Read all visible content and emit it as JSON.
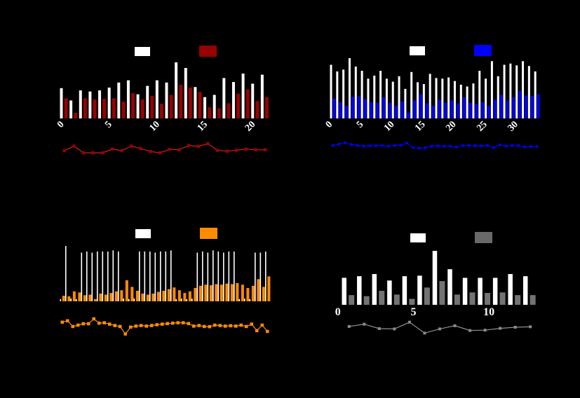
{
  "figure": {
    "background": "#000000",
    "grid_layout": "2x2",
    "titles_visible": false,
    "axis_labels_visible": false
  },
  "chart_data": [
    {
      "panel": "top-left",
      "type": "bar",
      "subtype": "grouped-bars-with-line-subplot",
      "n_groups": 22,
      "x_tick_labels": [
        "0",
        "5",
        "10",
        "15",
        "20"
      ],
      "x_tick_indices": [
        0,
        5,
        10,
        15,
        20
      ],
      "x_ticks_rotated": true,
      "ylim": [
        0,
        100
      ],
      "grid": false,
      "legend": {
        "position": "top-center",
        "labels_visible": false,
        "swatch_colors": [
          "#FFFFFF",
          "#990000"
        ]
      },
      "series": [
        {
          "name": "white-bars",
          "color": "#FFFFFF",
          "values": [
            54,
            32,
            50,
            48,
            50,
            55,
            64,
            68,
            43,
            58,
            68,
            64,
            100,
            90,
            56,
            38,
            42,
            72,
            65,
            80,
            62,
            78
          ]
        },
        {
          "name": "dark-red-bars",
          "color": "#990000",
          "values": [
            36,
            10,
            36,
            34,
            35,
            36,
            30,
            45,
            34,
            40,
            26,
            42,
            60,
            55,
            47,
            20,
            18,
            27,
            44,
            52,
            31,
            38
          ]
        }
      ],
      "line_series": {
        "name": "dark-red-line",
        "color": "#CC2222",
        "marker_color": "#990000",
        "marker": "square",
        "values": [
          25,
          52,
          12,
          12,
          12,
          34,
          25,
          52,
          37,
          20,
          12,
          33,
          30,
          56,
          50,
          67,
          27,
          22,
          27,
          34,
          30,
          30
        ]
      }
    },
    {
      "panel": "top-right",
      "type": "bar",
      "subtype": "grouped-bars-with-line-subplot",
      "n_groups": 34,
      "x_tick_labels": [
        "0",
        "5",
        "10",
        "15",
        "20",
        "25",
        "30"
      ],
      "x_tick_indices": [
        0,
        5,
        10,
        15,
        20,
        25,
        30
      ],
      "x_ticks_rotated": true,
      "ylim": [
        0,
        100
      ],
      "grid": false,
      "legend": {
        "position": "top-center",
        "labels_visible": false,
        "swatch_colors": [
          "#FFFFFF",
          "#0000FF"
        ]
      },
      "series": [
        {
          "name": "white-bars",
          "color": "#FFFFFF",
          "values": [
            89,
            78,
            81,
            100,
            86,
            79,
            66,
            71,
            79,
            66,
            61,
            70,
            49,
            77,
            60,
            57,
            74,
            67,
            66,
            68,
            62,
            56,
            53,
            58,
            79,
            66,
            95,
            70,
            89,
            91,
            88,
            95,
            87,
            78
          ]
        },
        {
          "name": "blue-bars",
          "color": "#0000FF",
          "values": [
            33,
            27,
            21,
            36,
            37,
            32,
            27,
            26,
            35,
            26,
            21,
            28,
            10,
            30,
            40,
            25,
            21,
            31,
            26,
            30,
            25,
            35,
            26,
            24,
            27,
            21,
            31,
            39,
            30,
            35,
            46,
            38,
            37,
            40
          ]
        }
      ],
      "line_series": {
        "name": "blue-line",
        "color": "#0000FF",
        "marker_color": "#0000EE",
        "marker": "square",
        "values": [
          30,
          40,
          52,
          37,
          30,
          25,
          28,
          28,
          30,
          24,
          30,
          32,
          50,
          13,
          8,
          12,
          25,
          28,
          23,
          25,
          18,
          30,
          30,
          28,
          28,
          30,
          12,
          35,
          25,
          28,
          30,
          18,
          22,
          20
        ]
      }
    },
    {
      "panel": "bottom-left",
      "type": "bar",
      "subtype": "grouped-bars-with-line-subplot",
      "n_groups": 40,
      "x_tick_labels": [],
      "x_tick_indices": [],
      "x_ticks_rotated": false,
      "ylim": [
        0,
        100
      ],
      "grid": false,
      "legend": {
        "position": "top-center",
        "labels_visible": false,
        "swatch_colors": [
          "#FFFFFF",
          "#FF8C00"
        ]
      },
      "series": [
        {
          "name": "white-bars",
          "color": "#FFFFFF",
          "values": [
            4,
            100,
            5,
            4,
            88,
            90,
            88,
            90,
            90,
            90,
            92,
            90,
            5,
            4,
            5,
            90,
            90,
            90,
            88,
            90,
            90,
            92,
            4,
            5,
            4,
            5,
            88,
            90,
            88,
            92,
            90,
            88,
            90,
            90,
            4,
            5,
            4,
            88,
            88,
            90
          ]
        },
        {
          "name": "orange-bars",
          "color": "#FF8C00",
          "values": [
            10,
            9,
            18,
            16,
            11,
            12,
            4,
            14,
            12,
            15,
            18,
            20,
            38,
            26,
            19,
            14,
            12,
            14,
            17,
            19,
            22,
            25,
            20,
            15,
            18,
            24,
            28,
            30,
            29,
            31,
            30,
            32,
            31,
            33,
            30,
            24,
            28,
            40,
            26,
            45
          ]
        }
      ],
      "line_series": {
        "name": "orange-line",
        "color": "#FF8C00",
        "marker_color": "#FF8C00",
        "marker": "square",
        "values": [
          65,
          72,
          43,
          50,
          57,
          57,
          82,
          60,
          62,
          55,
          48,
          43,
          5,
          40,
          45,
          48,
          45,
          48,
          52,
          55,
          58,
          60,
          62,
          62,
          58,
          45,
          48,
          43,
          42,
          50,
          48,
          45,
          47,
          45,
          50,
          43,
          55,
          22,
          50,
          18
        ]
      }
    },
    {
      "panel": "bottom-right",
      "type": "bar",
      "subtype": "grouped-bars-with-line-subplot",
      "n_groups": 13,
      "x_tick_labels": [
        "0",
        "5",
        "10"
      ],
      "x_tick_indices": [
        0,
        5,
        10
      ],
      "x_ticks_rotated": false,
      "ylim": [
        0,
        100
      ],
      "grid": false,
      "legend": {
        "position": "top-center",
        "labels_visible": false,
        "swatch_colors": [
          "#FFFFFF",
          "#696969"
        ]
      },
      "series": [
        {
          "name": "white-bars",
          "color": "#FFFFFF",
          "values": [
            50,
            53,
            57,
            45,
            53,
            54,
            100,
            66,
            50,
            50,
            50,
            57,
            53
          ]
        },
        {
          "name": "gray-bars",
          "color": "#737373",
          "values": [
            18,
            16,
            26,
            19,
            11,
            32,
            44,
            19,
            23,
            22,
            23,
            18,
            18
          ]
        }
      ],
      "line_series": {
        "name": "gray-line",
        "color": "#909090",
        "marker_color": "#8A8A8A",
        "marker": "square",
        "values": [
          64,
          79,
          50,
          48,
          92,
          21,
          48,
          69,
          38,
          40,
          52,
          59,
          62
        ]
      }
    }
  ]
}
